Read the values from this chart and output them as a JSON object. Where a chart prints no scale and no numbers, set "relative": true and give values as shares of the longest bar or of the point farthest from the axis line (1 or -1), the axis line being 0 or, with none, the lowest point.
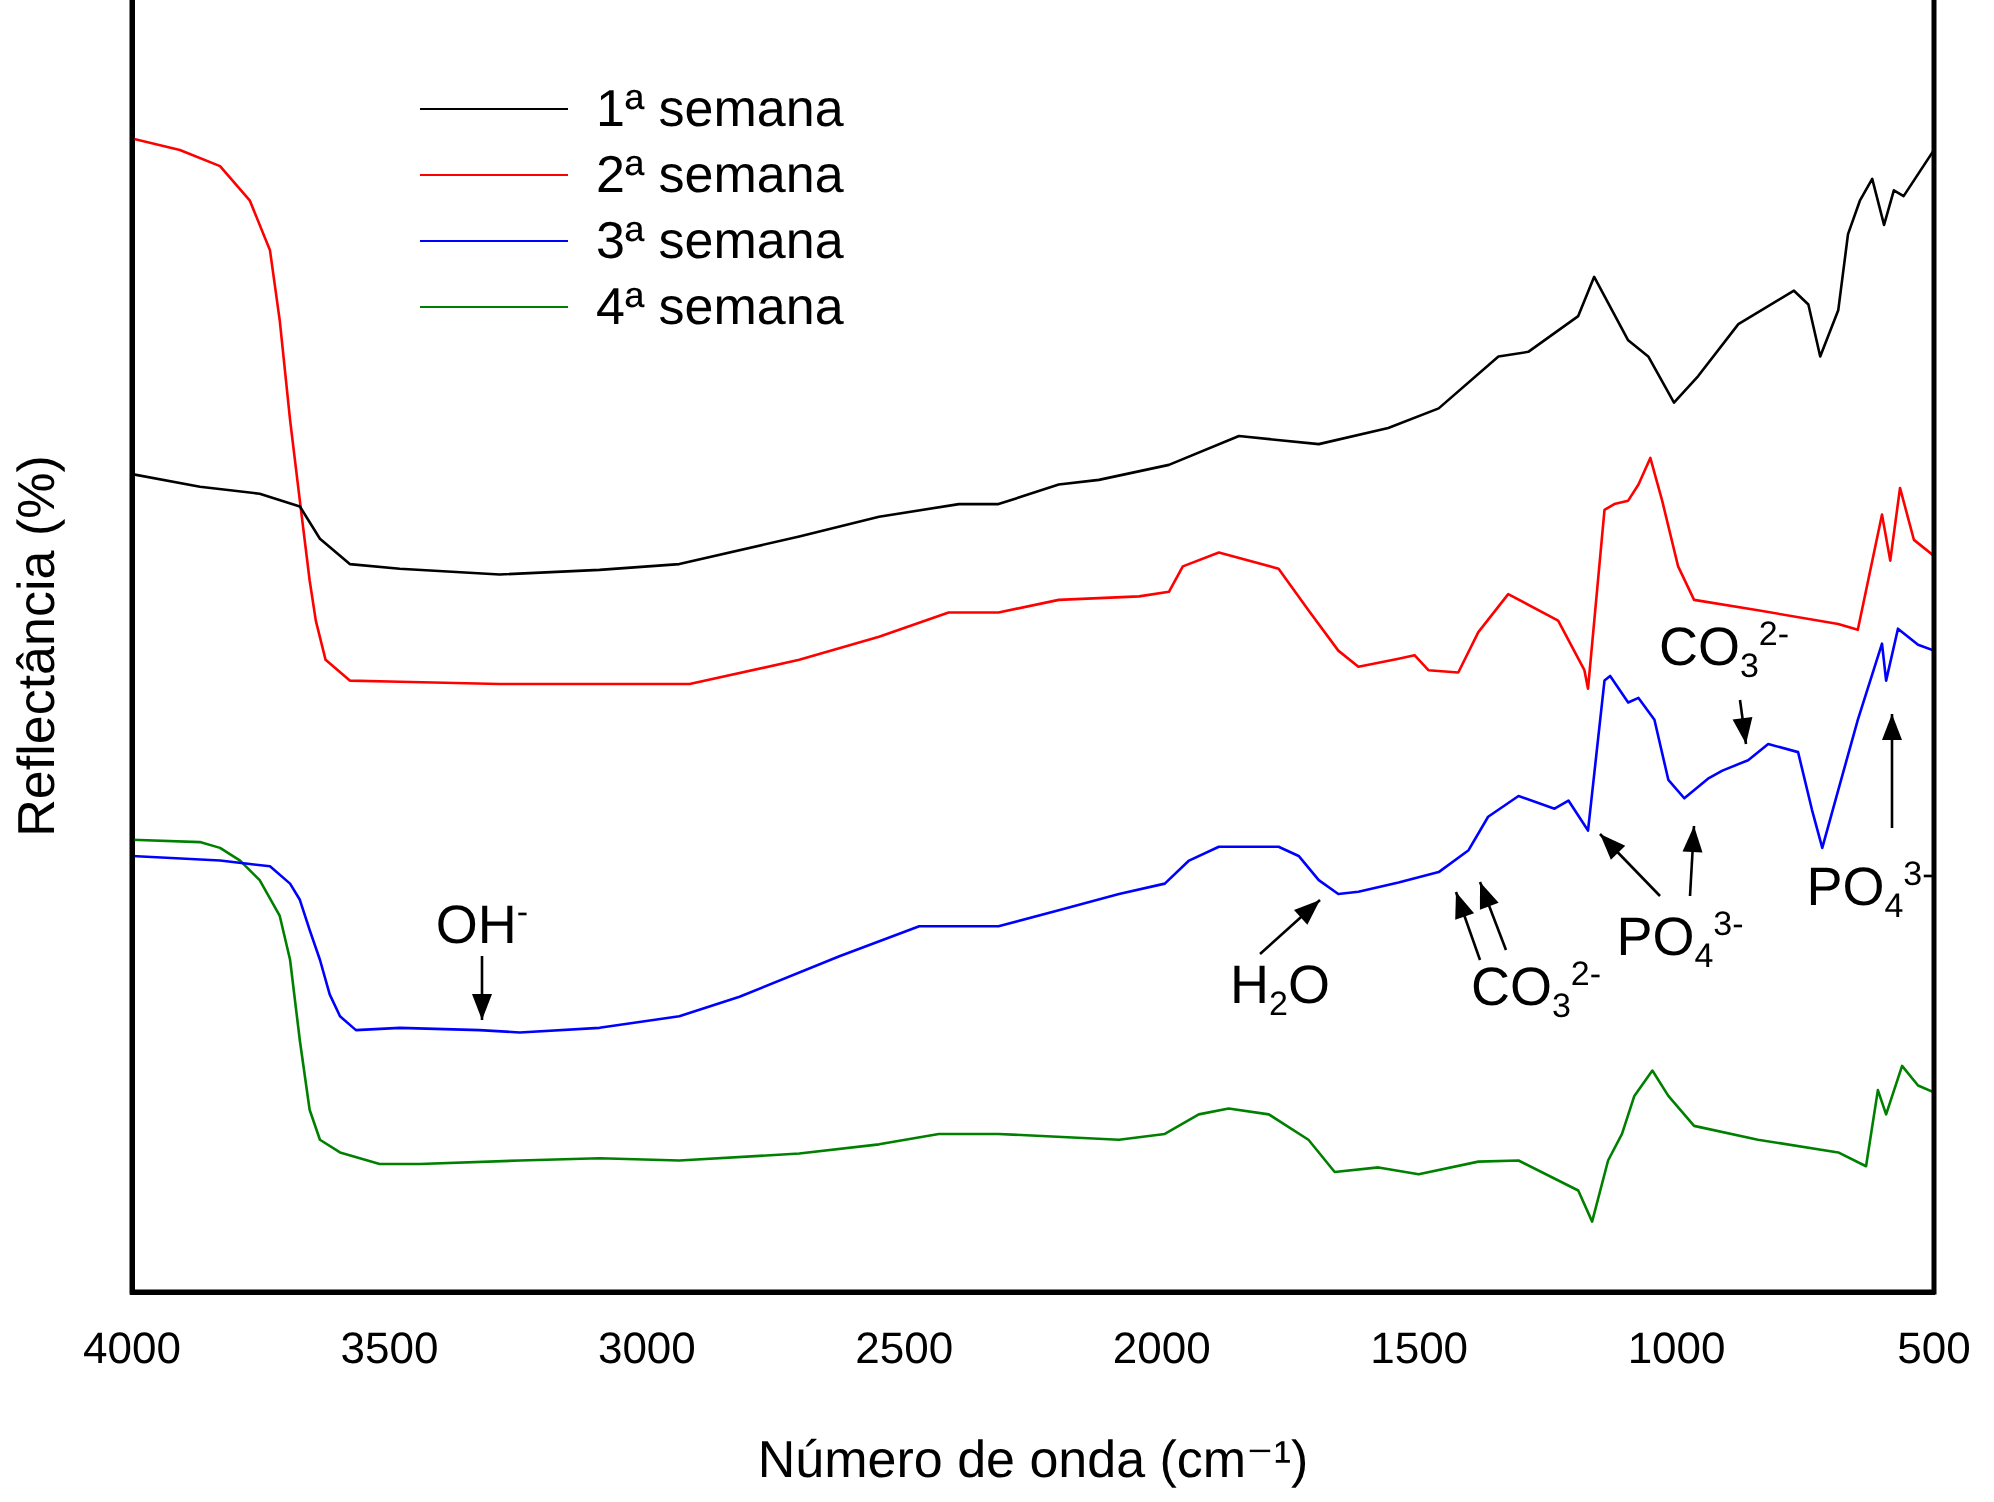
{
  "chart_data": {
    "type": "line",
    "relative": true,
    "xlabel": "Número de onda (cm⁻¹)",
    "ylabel": "Reflectância (%)",
    "xlim": [
      4000,
      500
    ],
    "xticks": [
      4000,
      3500,
      3000,
      2500,
      2000,
      1500,
      1000,
      500
    ],
    "legend": "top left",
    "grid": false,
    "marker": "none",
    "line_style": "solid",
    "series": [
      {
        "name": "1ª semana",
        "color": "#000000",
        "x": [
          4000,
          3868,
          3752,
          3674,
          3635,
          3577,
          3480,
          3286,
          3092,
          2937,
          2704,
          2549,
          2394,
          2317,
          2200,
          2122,
          1986,
          1850,
          1695,
          1560,
          1462,
          1346,
          1288,
          1191,
          1160,
          1094,
          1055,
          1005,
          958,
          880,
          772,
          744,
          721,
          686,
          667,
          644,
          620,
          597,
          578,
          559,
          500
        ],
        "values": [
          0.709,
          0.698,
          0.692,
          0.681,
          0.653,
          0.631,
          0.627,
          0.622,
          0.626,
          0.631,
          0.655,
          0.672,
          0.683,
          0.683,
          0.7,
          0.704,
          0.717,
          0.742,
          0.735,
          0.749,
          0.766,
          0.811,
          0.815,
          0.846,
          0.88,
          0.825,
          0.811,
          0.771,
          0.794,
          0.839,
          0.868,
          0.856,
          0.811,
          0.851,
          0.917,
          0.946,
          0.965,
          0.925,
          0.955,
          0.95,
          0.99
        ]
      },
      {
        "name": "2ª semana",
        "color": "#ff0000",
        "x": [
          4000,
          3907,
          3829,
          3771,
          3732,
          3713,
          3693,
          3674,
          3655,
          3643,
          3624,
          3577,
          3480,
          3286,
          3092,
          2917,
          2704,
          2549,
          2414,
          2317,
          2200,
          2044,
          1986,
          1959,
          1889,
          1773,
          1715,
          1657,
          1618,
          1540,
          1509,
          1482,
          1424,
          1385,
          1327,
          1230,
          1179,
          1172,
          1140,
          1121,
          1094,
          1074,
          1051,
          1028,
          997,
          966,
          842,
          686,
          648,
          601,
          585,
          566,
          539,
          500
        ],
        "values": [
          1.0,
          0.99,
          0.976,
          0.946,
          0.903,
          0.842,
          0.756,
          0.686,
          0.617,
          0.582,
          0.548,
          0.53,
          0.529,
          0.527,
          0.527,
          0.527,
          0.548,
          0.568,
          0.589,
          0.589,
          0.6,
          0.603,
          0.607,
          0.629,
          0.641,
          0.627,
          0.591,
          0.556,
          0.542,
          0.549,
          0.552,
          0.539,
          0.537,
          0.572,
          0.605,
          0.582,
          0.539,
          0.523,
          0.678,
          0.683,
          0.686,
          0.7,
          0.723,
          0.686,
          0.629,
          0.6,
          0.591,
          0.579,
          0.574,
          0.674,
          0.634,
          0.697,
          0.652,
          0.638
        ]
      },
      {
        "name": "3ª semana",
        "color": "#0000ff",
        "x": [
          4000,
          3829,
          3771,
          3732,
          3693,
          3674,
          3655,
          3635,
          3616,
          3596,
          3565,
          3480,
          3325,
          3247,
          3092,
          2937,
          2820,
          2626,
          2471,
          2317,
          2200,
          2083,
          1994,
          1947,
          1889,
          1773,
          1734,
          1695,
          1657,
          1618,
          1540,
          1462,
          1404,
          1366,
          1307,
          1237,
          1210,
          1172,
          1140,
          1129,
          1094,
          1074,
          1043,
          1016,
          985,
          939,
          911,
          861,
          822,
          764,
          737,
          717,
          686,
          648,
          601,
          593,
          570,
          531,
          500
        ],
        "values": [
          0.378,
          0.374,
          0.371,
          0.369,
          0.354,
          0.34,
          0.314,
          0.288,
          0.258,
          0.239,
          0.227,
          0.229,
          0.227,
          0.225,
          0.229,
          0.239,
          0.256,
          0.291,
          0.317,
          0.317,
          0.331,
          0.345,
          0.354,
          0.374,
          0.386,
          0.386,
          0.378,
          0.357,
          0.345,
          0.347,
          0.355,
          0.364,
          0.383,
          0.412,
          0.43,
          0.419,
          0.426,
          0.4,
          0.53,
          0.534,
          0.511,
          0.515,
          0.496,
          0.444,
          0.428,
          0.445,
          0.452,
          0.461,
          0.475,
          0.468,
          0.418,
          0.385,
          0.435,
          0.496,
          0.562,
          0.53,
          0.575,
          0.561,
          0.556
        ]
      },
      {
        "name": "4ª semana",
        "color": "#008000",
        "x": [
          4000,
          3868,
          3829,
          3790,
          3752,
          3713,
          3693,
          3674,
          3655,
          3635,
          3596,
          3519,
          3441,
          3247,
          3092,
          2937,
          2704,
          2549,
          2433,
          2317,
          2083,
          1994,
          1928,
          1870,
          1792,
          1715,
          1664,
          1579,
          1501,
          1385,
          1307,
          1191,
          1164,
          1133,
          1106,
          1082,
          1047,
          1016,
          966,
          842,
          686,
          632,
          609,
          593,
          562,
          531,
          500
        ],
        "values": [
          0.392,
          0.39,
          0.385,
          0.374,
          0.357,
          0.326,
          0.288,
          0.218,
          0.158,
          0.132,
          0.121,
          0.111,
          0.111,
          0.114,
          0.116,
          0.114,
          0.12,
          0.128,
          0.137,
          0.137,
          0.132,
          0.137,
          0.154,
          0.159,
          0.154,
          0.132,
          0.104,
          0.108,
          0.102,
          0.113,
          0.114,
          0.088,
          0.061,
          0.114,
          0.137,
          0.17,
          0.192,
          0.17,
          0.144,
          0.132,
          0.121,
          0.109,
          0.175,
          0.154,
          0.196,
          0.179,
          0.173
        ]
      }
    ],
    "annotations": [
      "OH$^{-}$",
      "H$_{2}$O",
      "CO$_{3}$$^{2-}$",
      "PO$_{4}$$^{3-}$",
      "CO$_{3}$$^{2-}$",
      "PO$_{4}$$^{3-}$"
    ]
  }
}
